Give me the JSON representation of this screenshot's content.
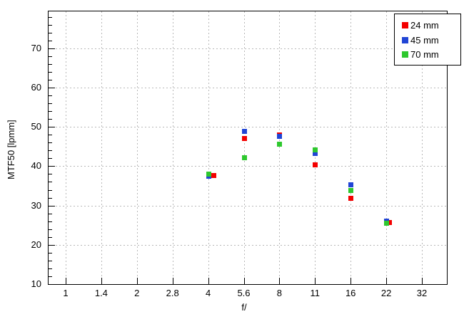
{
  "figure": {
    "background": "#ffffff",
    "axis_color": "#000000",
    "grid_color": "#b8b8b8",
    "text_color": "#000000"
  },
  "chart_data": {
    "type": "scatter",
    "title": "",
    "xlabel": "f/",
    "ylabel": "MTF50 [lpmm]",
    "x_scale": "log-sqrt2-stops",
    "x_tick_labels": [
      "1",
      "1.4",
      "2",
      "2.8",
      "4",
      "5.6",
      "8",
      "11",
      "16",
      "22",
      "32"
    ],
    "y_tick_labels": [
      "10",
      "20",
      "30",
      "40",
      "50",
      "60",
      "70"
    ],
    "y_major_step": 10,
    "y_minor_step": 2,
    "ylim": [
      10,
      79.5
    ],
    "grid": "dotted",
    "legend_position": "top-right",
    "legend": [
      {
        "label": "24 mm",
        "color": "#f40000"
      },
      {
        "label": "45 mm",
        "color": "#2145d5"
      },
      {
        "label": "70 mm",
        "color": "#2ec82e"
      }
    ],
    "series": [
      {
        "name": "24 mm",
        "color": "#f40000",
        "points": [
          {
            "f": "4",
            "mtf50": 37.7,
            "dx": 7
          },
          {
            "f": "5.6",
            "mtf50": 47.1,
            "dx": 0
          },
          {
            "f": "8",
            "mtf50": 48.0,
            "dx": 0
          },
          {
            "f": "11",
            "mtf50": 40.4,
            "dx": 0
          },
          {
            "f": "16",
            "mtf50": 31.9,
            "dx": 0
          },
          {
            "f": "22",
            "mtf50": 25.7,
            "dx": 4
          }
        ]
      },
      {
        "name": "45 mm",
        "color": "#2145d5",
        "points": [
          {
            "f": "4",
            "mtf50": 37.5,
            "dx": 0
          },
          {
            "f": "5.6",
            "mtf50": 48.9,
            "dx": 0
          },
          {
            "f": "8",
            "mtf50": 47.6,
            "dx": 0
          },
          {
            "f": "11",
            "mtf50": 43.3,
            "dx": 0
          },
          {
            "f": "16",
            "mtf50": 35.3,
            "dx": 0
          },
          {
            "f": "22",
            "mtf50": 26.1,
            "dx": 0
          }
        ]
      },
      {
        "name": "70 mm",
        "color": "#2ec82e",
        "points": [
          {
            "f": "4",
            "mtf50": 38.1,
            "dx": 0
          },
          {
            "f": "5.6",
            "mtf50": 42.2,
            "dx": 0
          },
          {
            "f": "8",
            "mtf50": 45.7,
            "dx": 0
          },
          {
            "f": "11",
            "mtf50": 44.3,
            "dx": 0
          },
          {
            "f": "16",
            "mtf50": 34.0,
            "dx": 0
          },
          {
            "f": "22",
            "mtf50": 25.5,
            "dx": 0
          }
        ]
      }
    ]
  }
}
